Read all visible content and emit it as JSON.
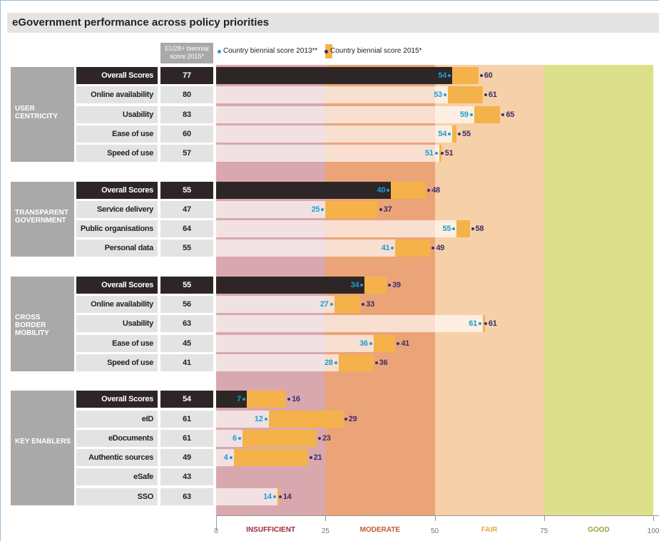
{
  "chart_data": {
    "type": "bar",
    "title": "eGovernment performance across policy priorities",
    "eu_header": "EU28+ biennial score 2015*",
    "legend": [
      {
        "name": "Country biennial score 2013**",
        "color": "#1aa0d2"
      },
      {
        "name": "Country biennial score 2015*",
        "color": "#f5b24a"
      }
    ],
    "groups": [
      {
        "name": "USER CENTRICITY",
        "rows": [
          {
            "label": "Overall Scores",
            "eu": 77,
            "v2013": 54,
            "v2015": 60
          },
          {
            "label": "Online availability",
            "eu": 80,
            "v2013": 53,
            "v2015": 61
          },
          {
            "label": "Usability",
            "eu": 83,
            "v2013": 59,
            "v2015": 65
          },
          {
            "label": "Ease of use",
            "eu": 60,
            "v2013": 54,
            "v2015": 55
          },
          {
            "label": "Speed of use",
            "eu": 57,
            "v2013": 51,
            "v2015": 51
          }
        ]
      },
      {
        "name": "TRANSPARENT GOVERNMENT",
        "rows": [
          {
            "label": "Overall Scores",
            "eu": 55,
            "v2013": 40,
            "v2015": 48
          },
          {
            "label": "Service delivery",
            "eu": 47,
            "v2013": 25,
            "v2015": 37
          },
          {
            "label": "Public organisations",
            "eu": 64,
            "v2013": 55,
            "v2015": 58
          },
          {
            "label": "Personal data",
            "eu": 55,
            "v2013": 41,
            "v2015": 49
          }
        ]
      },
      {
        "name": "CROSS BORDER MOBILITY",
        "rows": [
          {
            "label": "Overall Scores",
            "eu": 55,
            "v2013": 34,
            "v2015": 39
          },
          {
            "label": "Online availability",
            "eu": 56,
            "v2013": 27,
            "v2015": 33
          },
          {
            "label": "Usability",
            "eu": 63,
            "v2013": 61,
            "v2015": 61
          },
          {
            "label": "Ease of use",
            "eu": 45,
            "v2013": 36,
            "v2015": 41
          },
          {
            "label": "Speed of use",
            "eu": 41,
            "v2013": 28,
            "v2015": 36
          }
        ]
      },
      {
        "name": "KEY ENABLERS",
        "rows": [
          {
            "label": "Overall Scores",
            "eu": 54,
            "v2013": 7,
            "v2015": 16
          },
          {
            "label": "eID",
            "eu": 61,
            "v2013": 12,
            "v2015": 29
          },
          {
            "label": "eDocuments",
            "eu": 61,
            "v2013": 6,
            "v2015": 23
          },
          {
            "label": "Authentic sources",
            "eu": 49,
            "v2013": 4,
            "v2015": 21
          },
          {
            "label": "eSafe",
            "eu": 43,
            "v2013": null,
            "v2015": null
          },
          {
            "label": "SSO",
            "eu": 63,
            "v2013": 14,
            "v2015": 14
          }
        ]
      }
    ],
    "zones": [
      {
        "label": "INSUFFICIENT",
        "color": "#a2243c",
        "fill": "#d9a8ae"
      },
      {
        "label": "MODERATE",
        "color": "#c25a2c",
        "fill": "#eba477"
      },
      {
        "label": "FAIR",
        "color": "#eda73a",
        "fill": "#f6d0a8"
      },
      {
        "label": "GOOD",
        "color": "#9ea436",
        "fill": "#dce08b"
      }
    ],
    "xlim": [
      0,
      100
    ],
    "xticks": [
      0,
      25,
      50,
      75,
      100
    ]
  }
}
